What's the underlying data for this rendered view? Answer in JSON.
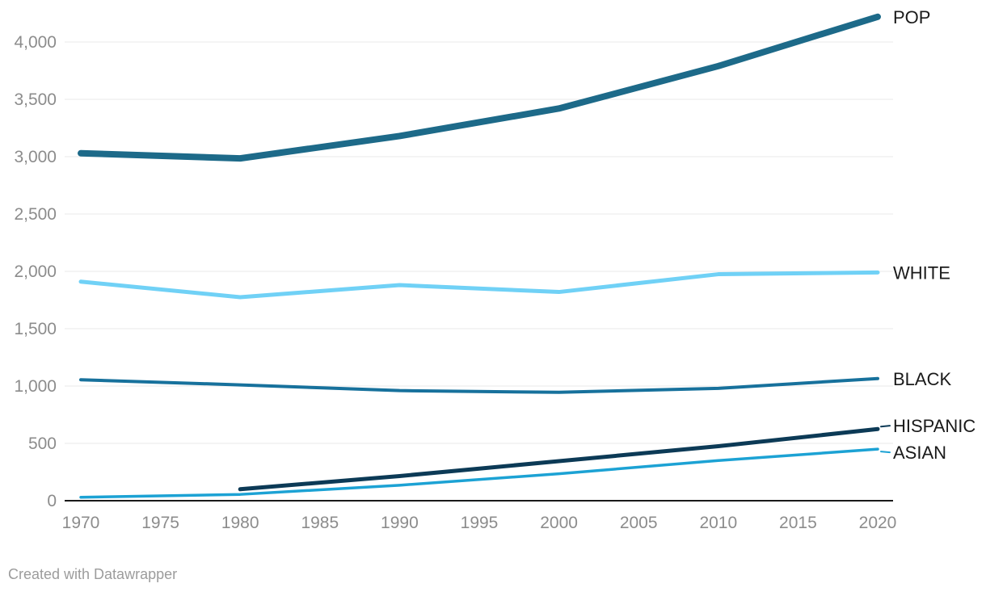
{
  "chart": {
    "footer": "Created with Datawrapper",
    "colors": {
      "background": "#ffffff",
      "grid": "#e9e9e9",
      "axis": "#191919",
      "tick_label": "#8c8c8c",
      "series_label": "#1a1a1a",
      "footer_text": "#9c9c9c"
    }
  },
  "chart_data": {
    "type": "line",
    "title": "",
    "xlabel": "",
    "ylabel": "",
    "grid": "horizontal",
    "legend_position": "right-inline-labels",
    "x": [
      1970,
      1980,
      1990,
      2000,
      2010,
      2020
    ],
    "xlim": [
      1970,
      2020
    ],
    "ylim": [
      0,
      4400
    ],
    "x_tick_labels": [
      "1970",
      "1975",
      "1980",
      "1985",
      "1990",
      "1995",
      "2000",
      "2005",
      "2010",
      "2015",
      "2020"
    ],
    "y_ticks": [
      0,
      500,
      1000,
      1500,
      2000,
      2500,
      3000,
      3500,
      4000
    ],
    "y_tick_labels": [
      "0",
      "500",
      "1,000",
      "1,500",
      "2,000",
      "2,500",
      "3,000",
      "3,500",
      "4,000"
    ],
    "series": [
      {
        "name": "POP",
        "color": "#1d6a89",
        "stroke_width": 8,
        "values": [
          3030,
          2985,
          3180,
          3420,
          3790,
          4220
        ]
      },
      {
        "name": "WHITE",
        "color": "#70d1f6",
        "stroke_width": 5,
        "values": [
          1910,
          1775,
          1880,
          1820,
          1975,
          1990
        ]
      },
      {
        "name": "BLACK",
        "color": "#17719c",
        "stroke_width": 4,
        "values": [
          1055,
          1010,
          960,
          945,
          980,
          1065
        ]
      },
      {
        "name": "HISPANIC",
        "color": "#0c3a56",
        "stroke_width": 5,
        "values": [
          null,
          100,
          215,
          345,
          475,
          625
        ]
      },
      {
        "name": "ASIAN",
        "color": "#1ca2d4",
        "stroke_width": 3.5,
        "values": [
          30,
          55,
          135,
          235,
          350,
          450
        ]
      }
    ]
  }
}
